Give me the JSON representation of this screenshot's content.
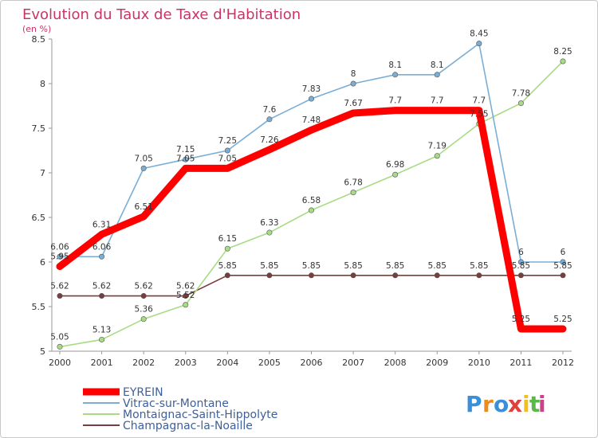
{
  "chart_data": {
    "type": "line",
    "title": "Evolution du Taux de Taxe d'Habitation",
    "subtitle": "(en %)",
    "x": [
      "2000",
      "2001",
      "2002",
      "2003",
      "2004",
      "2005",
      "2006",
      "2007",
      "2008",
      "2009",
      "2010",
      "2011",
      "2012"
    ],
    "ylim": [
      5,
      8.5
    ],
    "yticks": [
      "5",
      "5.5",
      "6",
      "6.5",
      "7",
      "7.5",
      "8",
      "8.5"
    ],
    "grid": false,
    "legend_position": "bottom-left",
    "series": [
      {
        "name": "EYREIN",
        "color": "#ff0000",
        "values": [
          5.95,
          6.31,
          6.51,
          7.05,
          7.05,
          7.26,
          7.48,
          7.67,
          7.7,
          7.7,
          7.7,
          5.25,
          5.25
        ],
        "labels": [
          "5.95",
          "6.31",
          "6.51",
          "7.05",
          "7.05",
          "7.26",
          "7.48",
          "7.67",
          "7.7",
          "7.7",
          "7.7",
          "5.25",
          "5.25"
        ]
      },
      {
        "name": "Vitrac-sur-Montane",
        "color": "#7aaed6",
        "values": [
          6.06,
          6.06,
          7.05,
          7.15,
          7.25,
          7.6,
          7.83,
          8,
          8.1,
          8.1,
          8.45,
          6,
          6
        ],
        "labels": [
          "6.06",
          "6.06",
          "7.05",
          "7.15",
          "7.25",
          "7.6",
          "7.83",
          "8",
          "8.1",
          "8.1",
          "8.45",
          "6",
          "6"
        ]
      },
      {
        "name": "Montaignac-Saint-Hippolyte",
        "color": "#a8dc84",
        "values": [
          5.05,
          5.13,
          5.36,
          5.52,
          6.15,
          6.33,
          6.58,
          6.78,
          6.98,
          7.19,
          7.55,
          7.78,
          8.25
        ],
        "labels": [
          "5.05",
          "5.13",
          "5.36",
          "5.52",
          "6.15",
          "6.33",
          "6.58",
          "6.78",
          "6.98",
          "7.19",
          "7.55",
          "7.78",
          "8.25"
        ]
      },
      {
        "name": "Champagnac-la-Noaille",
        "color": "#7a3c3c",
        "values": [
          5.62,
          5.62,
          5.62,
          5.62,
          5.85,
          5.85,
          5.85,
          5.85,
          5.85,
          5.85,
          5.85,
          5.85,
          5.85
        ],
        "labels": [
          "5.62",
          "5.62",
          "5.62",
          "5.62",
          "5.85",
          "5.85",
          "5.85",
          "5.85",
          "5.85",
          "5.85",
          "5.85",
          "5.85",
          "5.85"
        ]
      }
    ]
  },
  "brand": {
    "letters": [
      "P",
      "r",
      "o",
      "x",
      "i",
      "t",
      "i"
    ],
    "colors": [
      "#3a8fd8",
      "#f08a1c",
      "#3a8fd8",
      "#e0403a",
      "#f0c020",
      "#58b848",
      "#d0408a"
    ]
  }
}
